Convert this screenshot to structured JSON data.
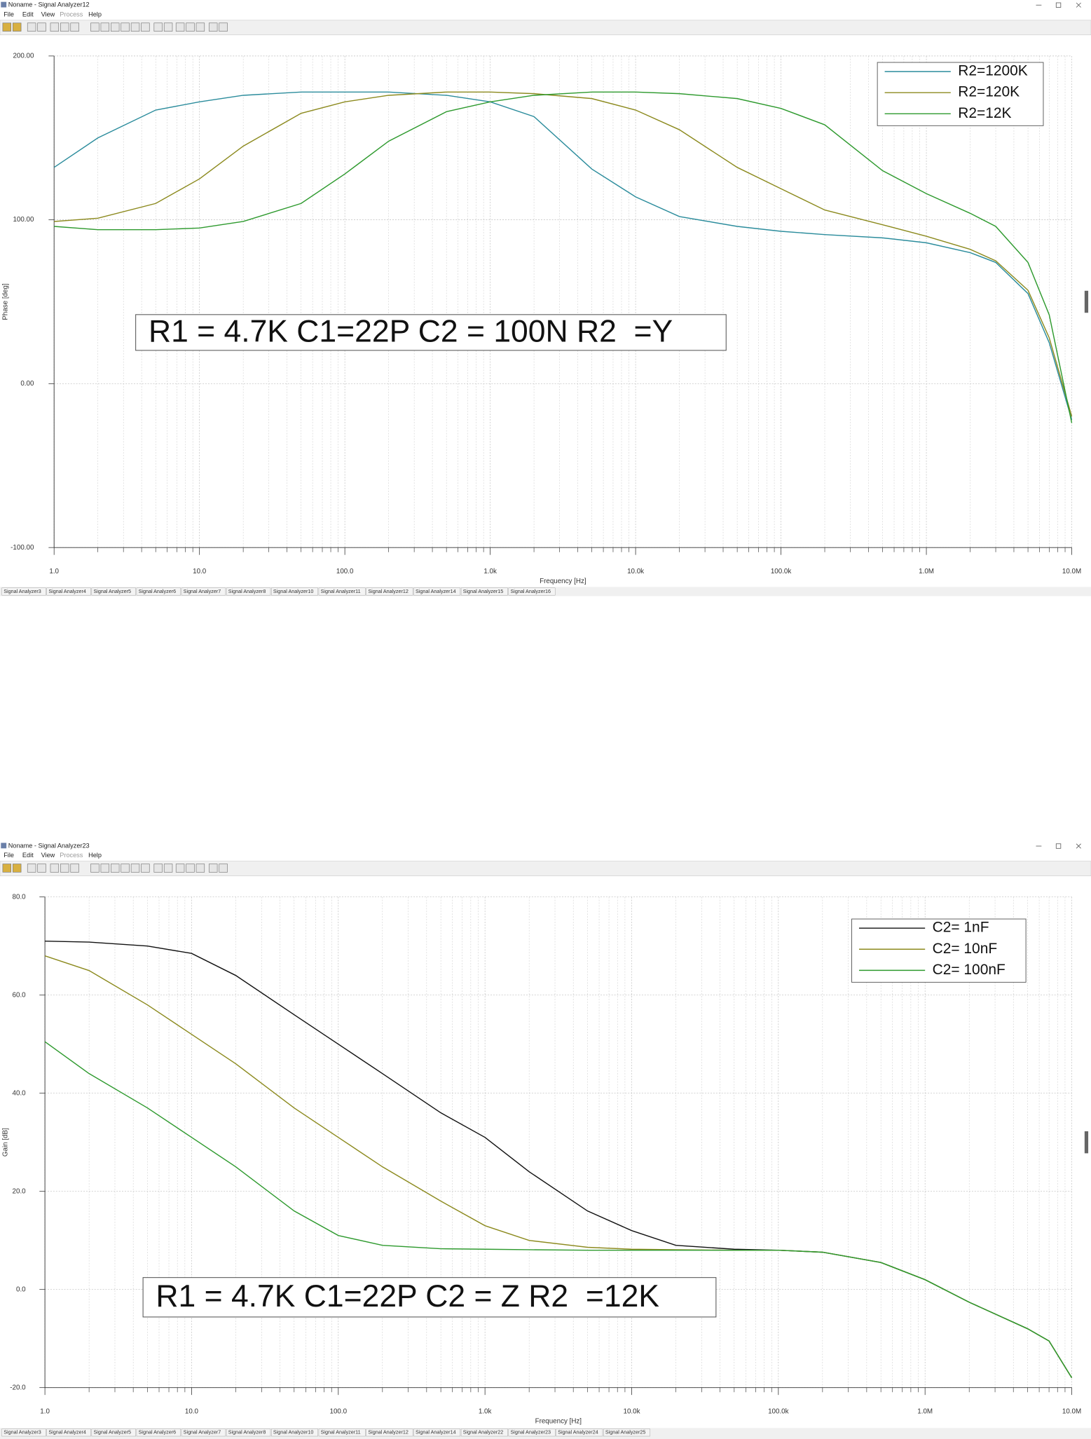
{
  "windows": [
    {
      "title": "Noname - Signal Analyzer12",
      "menu": [
        "File",
        "Edit",
        "View",
        "Process",
        "Help"
      ],
      "tabs": [
        "Signal Analyzer3",
        "Signal Analyzer4",
        "Signal Analyzer5",
        "Signal Analyzer6",
        "Signal Analyzer7",
        "Signal Analyzer8",
        "Signal Analyzer10",
        "Signal Analyzer11",
        "Signal Analyzer12",
        "Signal Analyzer14",
        "Signal Analyzer15",
        "Signal Analyzer16"
      ]
    },
    {
      "title": "Noname - Signal Analyzer23",
      "menu": [
        "File",
        "Edit",
        "View",
        "Process",
        "Help"
      ],
      "tabs": [
        "Signal Analyzer3",
        "Signal Analyzer4",
        "Signal Analyzer5",
        "Signal Analyzer6",
        "Signal Analyzer7",
        "Signal Analyzer8",
        "Signal Analyzer10",
        "Signal Analyzer11",
        "Signal Analyzer12",
        "Signal Analyzer14",
        "Signal Analyzer22",
        "Signal Analyzer23",
        "Signal Analyzer24",
        "Signal Analyzer25"
      ]
    }
  ],
  "chart_data": [
    {
      "type": "line",
      "xlabel": "Frequency [Hz]",
      "ylabel": "Phase [deg]",
      "annotation": "R1 = 4.7K C1=22P C2 = 100N R2  =Y",
      "x": [
        1,
        2,
        5,
        10,
        20,
        50,
        100,
        200,
        500,
        1000,
        2000,
        5000,
        10000,
        20000,
        50000,
        100000,
        200000,
        500000,
        1000000,
        2000000,
        3000000,
        5000000,
        7000000,
        10000000
      ],
      "series": [
        {
          "name": "R2=1200K",
          "color": "#2b8c9c",
          "values": [
            132,
            150,
            167,
            172,
            176,
            178,
            178,
            178,
            176,
            172,
            163,
            131,
            114,
            102,
            96,
            93,
            91,
            89,
            86,
            80,
            74,
            55,
            25,
            -22
          ]
        },
        {
          "name": "R2=120K",
          "color": "#8c8a1e",
          "values": [
            99,
            101,
            110,
            125,
            145,
            165,
            172,
            176,
            178,
            178,
            177,
            174,
            167,
            155,
            132,
            119,
            106,
            97,
            90,
            82,
            75,
            57,
            28,
            -20
          ]
        },
        {
          "name": "R2=12K",
          "color": "#2e9a2e",
          "values": [
            96,
            94,
            94,
            95,
            99,
            110,
            128,
            148,
            166,
            172,
            176,
            178,
            178,
            177,
            174,
            168,
            158,
            130,
            116,
            104,
            96,
            74,
            42,
            -24
          ]
        }
      ],
      "xlim": [
        1,
        10000000
      ],
      "xticks": [
        {
          "value": 1,
          "label": "1.0"
        },
        {
          "value": 10,
          "label": "10.0"
        },
        {
          "value": 100,
          "label": "100.0"
        },
        {
          "value": 1000,
          "label": "1.0k"
        },
        {
          "value": 10000,
          "label": "10.0k"
        },
        {
          "value": 100000,
          "label": "100.0k"
        },
        {
          "value": 1000000,
          "label": "1.0M"
        },
        {
          "value": 10000000,
          "label": "10.0M"
        }
      ],
      "ylim": [
        -100,
        200
      ],
      "yticks": [
        {
          "value": -100,
          "label": "-100.00"
        },
        {
          "value": 0,
          "label": "0.00"
        },
        {
          "value": 100,
          "label": "100.00"
        },
        {
          "value": 200,
          "label": "200.00"
        }
      ],
      "log_x": true,
      "grid": true,
      "legend": "upper right"
    },
    {
      "type": "line",
      "xlabel": "Frequency [Hz]",
      "ylabel": "Gain [dB]",
      "annotation": "R1 = 4.7K C1=22P C2 = Z R2  =12K",
      "x": [
        1,
        2,
        5,
        10,
        20,
        50,
        100,
        200,
        500,
        1000,
        2000,
        5000,
        10000,
        20000,
        50000,
        100000,
        200000,
        500000,
        1000000,
        2000000,
        5000000,
        7000000,
        10000000
      ],
      "series": [
        {
          "name": "C2= 1nF",
          "color": "#111111",
          "values": [
            71,
            70.8,
            70,
            68.5,
            64,
            56,
            50,
            44,
            36,
            31,
            24,
            16,
            12,
            9,
            8.2,
            8,
            7.6,
            5.5,
            2,
            -2.6,
            -8,
            -10.5,
            -18
          ]
        },
        {
          "name": "C2= 10nF",
          "color": "#8c8a1e",
          "values": [
            68,
            65,
            58,
            52,
            46,
            37,
            31,
            25,
            18,
            13,
            10,
            8.6,
            8.2,
            8.1,
            8,
            8,
            7.6,
            5.5,
            2,
            -2.6,
            -8,
            -10.5,
            -18
          ]
        },
        {
          "name": "C2= 100nF",
          "color": "#2e9a2e",
          "values": [
            50.5,
            44,
            37,
            31,
            25,
            16,
            11,
            9,
            8.3,
            8.2,
            8.1,
            8,
            8,
            8,
            8,
            8,
            7.6,
            5.5,
            2,
            -2.6,
            -8,
            -10.5,
            -18
          ]
        }
      ],
      "xlim": [
        1,
        10000000
      ],
      "xticks": [
        {
          "value": 1,
          "label": "1.0"
        },
        {
          "value": 10,
          "label": "10.0"
        },
        {
          "value": 100,
          "label": "100.0"
        },
        {
          "value": 1000,
          "label": "1.0k"
        },
        {
          "value": 10000,
          "label": "10.0k"
        },
        {
          "value": 100000,
          "label": "100.0k"
        },
        {
          "value": 1000000,
          "label": "1.0M"
        },
        {
          "value": 10000000,
          "label": "10.0M"
        }
      ],
      "ylim": [
        -20,
        80
      ],
      "yticks": [
        {
          "value": -20,
          "label": "-20.0"
        },
        {
          "value": 0,
          "label": "0.0"
        },
        {
          "value": 20,
          "label": "20.0"
        },
        {
          "value": 40,
          "label": "40.0"
        },
        {
          "value": 60,
          "label": "60.0"
        },
        {
          "value": 80,
          "label": "80.0"
        }
      ],
      "log_x": true,
      "grid": true,
      "legend": "upper right"
    }
  ]
}
